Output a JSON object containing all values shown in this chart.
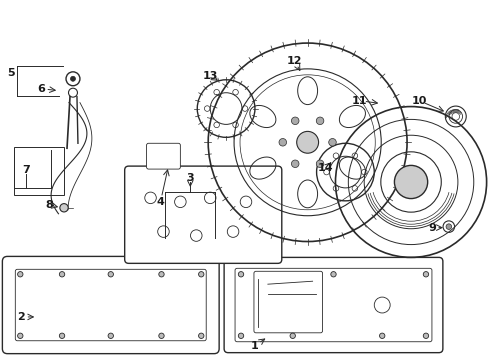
{
  "bg_color": "#ffffff",
  "line_color": "#2a2a2a",
  "text_color": "#1a1a1a",
  "fig_width": 4.89,
  "fig_height": 3.6,
  "dpi": 100,
  "callouts": {
    "1": {
      "lpos": [
        2.55,
        0.13
      ],
      "target": [
        2.68,
        0.22
      ],
      "arrow": true
    },
    "2": {
      "lpos": [
        0.2,
        0.42
      ],
      "target": [
        0.36,
        0.42
      ],
      "arrow": true
    },
    "3": {
      "lpos": [
        1.9,
        1.82
      ],
      "target": [
        1.9,
        1.7
      ],
      "arrow": true
    },
    "4": {
      "lpos": [
        1.6,
        1.58
      ],
      "target": [
        1.68,
        1.94
      ],
      "arrow": true
    },
    "5": {
      "lpos": [
        0.1,
        2.88
      ],
      "target": [
        0.22,
        2.88
      ],
      "arrow": false
    },
    "6": {
      "lpos": [
        0.4,
        2.72
      ],
      "target": [
        0.58,
        2.7
      ],
      "arrow": true
    },
    "7": {
      "lpos": [
        0.25,
        1.9
      ],
      "target": [
        0.25,
        1.95
      ],
      "arrow": false
    },
    "8": {
      "lpos": [
        0.48,
        1.55
      ],
      "target": [
        0.6,
        1.52
      ],
      "arrow": true
    },
    "9": {
      "lpos": [
        4.33,
        1.32
      ],
      "target": [
        4.47,
        1.32
      ],
      "arrow": true
    },
    "10": {
      "lpos": [
        4.2,
        2.6
      ],
      "target": [
        4.48,
        2.48
      ],
      "arrow": true
    },
    "11": {
      "lpos": [
        3.6,
        2.6
      ],
      "target": [
        3.82,
        2.57
      ],
      "arrow": true
    },
    "12": {
      "lpos": [
        2.95,
        3.0
      ],
      "target": [
        3.02,
        2.87
      ],
      "arrow": true
    },
    "13": {
      "lpos": [
        2.1,
        2.85
      ],
      "target": [
        2.18,
        2.8
      ],
      "arrow": true
    },
    "14": {
      "lpos": [
        3.26,
        1.92
      ],
      "target": [
        3.34,
        2.0
      ],
      "arrow": true
    }
  }
}
